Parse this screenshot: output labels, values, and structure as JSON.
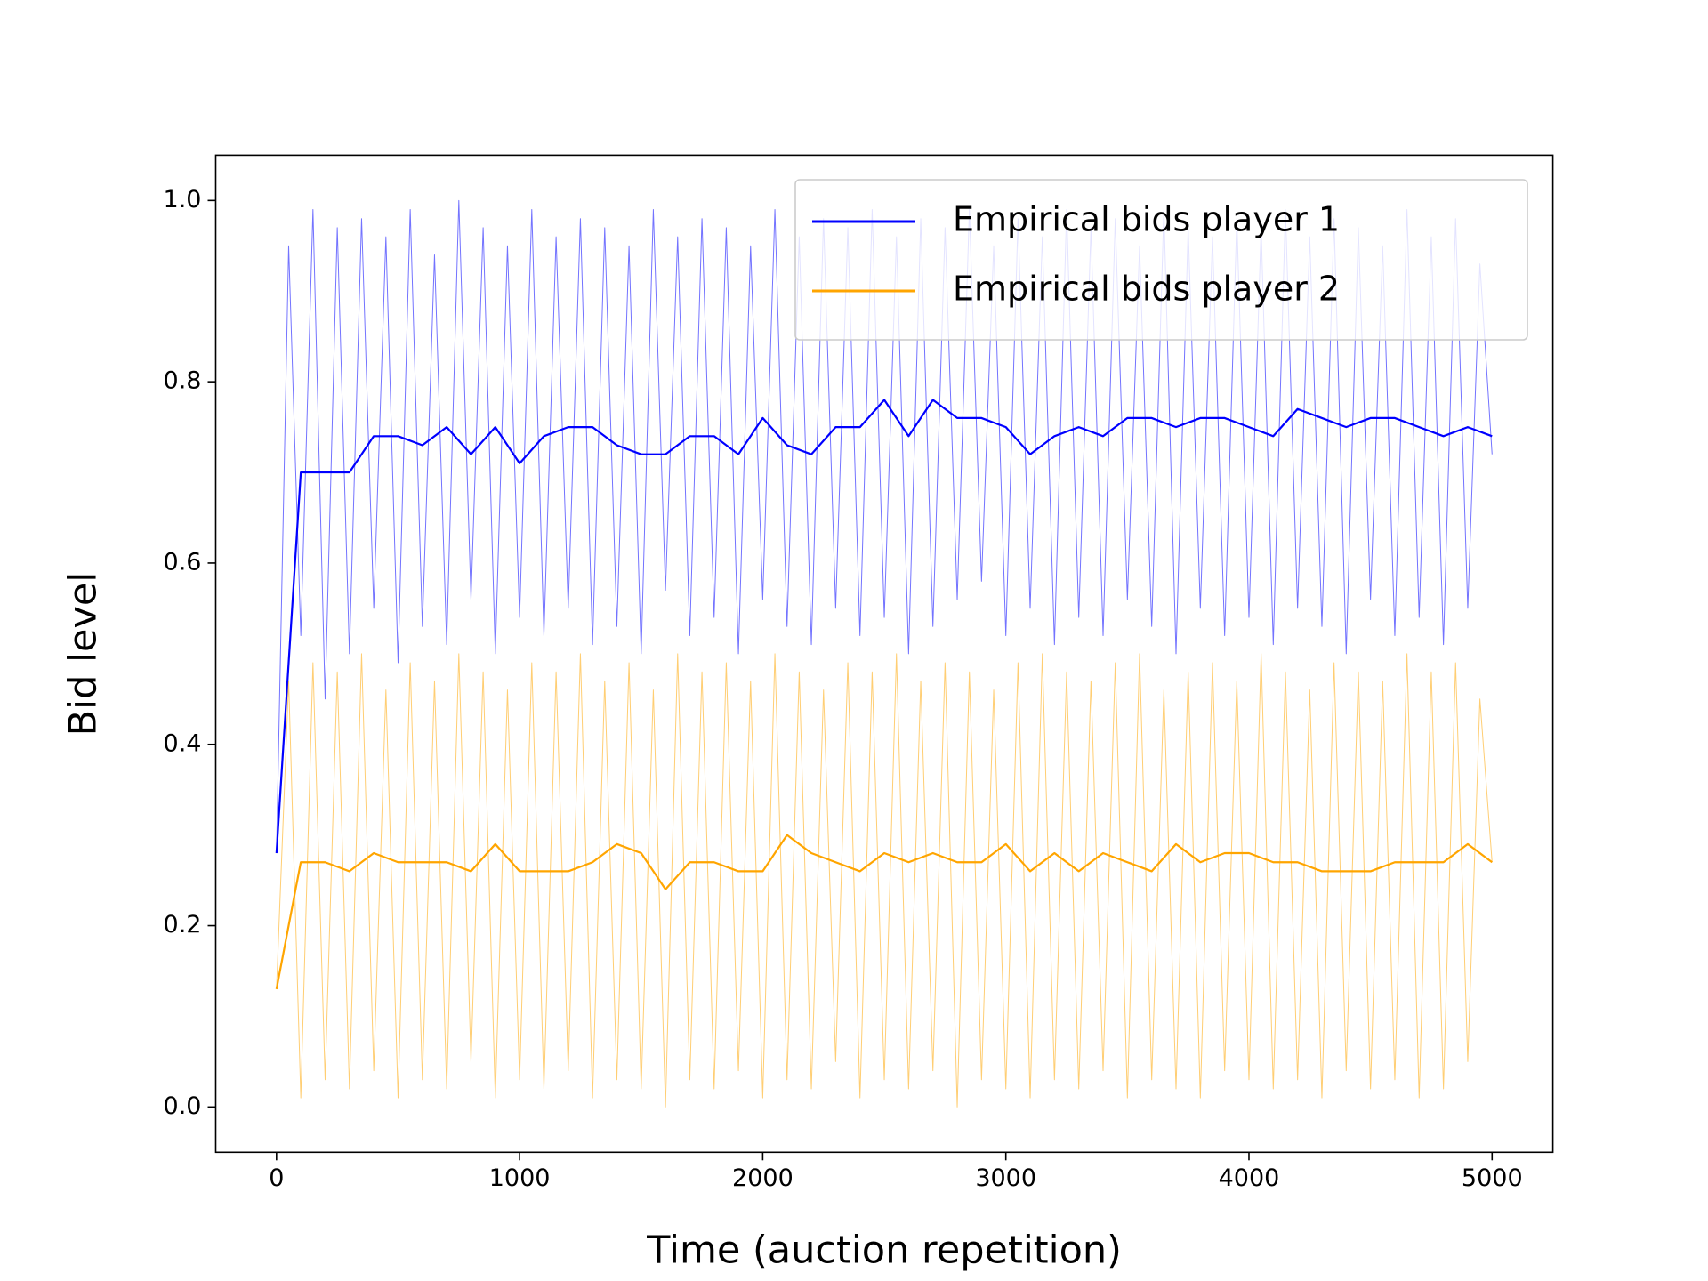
{
  "chart_data": {
    "type": "line",
    "xlabel": "Time (auction repetition)",
    "ylabel": "Bid level",
    "xlim": [
      -250,
      5250
    ],
    "ylim": [
      -0.05,
      1.05
    ],
    "xticks": [
      0,
      1000,
      2000,
      3000,
      4000,
      5000
    ],
    "yticks": [
      {
        "value": 0,
        "label": "0.0"
      },
      {
        "value": 0.2,
        "label": "0.2"
      },
      {
        "value": 0.4,
        "label": "0.4"
      },
      {
        "value": 0.6,
        "label": "0.6"
      },
      {
        "value": 0.8,
        "label": "0.8"
      },
      {
        "value": 1,
        "label": "1.0"
      }
    ],
    "legend": "upper right",
    "grid": false,
    "x": [
      0,
      50,
      100,
      150,
      200,
      250,
      300,
      350,
      400,
      450,
      500,
      550,
      600,
      650,
      700,
      750,
      800,
      850,
      900,
      950,
      1000,
      1050,
      1100,
      1150,
      1200,
      1250,
      1300,
      1350,
      1400,
      1450,
      1500,
      1550,
      1600,
      1650,
      1700,
      1750,
      1800,
      1850,
      1900,
      1950,
      2000,
      2050,
      2100,
      2150,
      2200,
      2250,
      2300,
      2350,
      2400,
      2450,
      2500,
      2550,
      2600,
      2650,
      2700,
      2750,
      2800,
      2850,
      2900,
      2950,
      3000,
      3050,
      3100,
      3150,
      3200,
      3250,
      3300,
      3350,
      3400,
      3450,
      3500,
      3550,
      3600,
      3650,
      3700,
      3750,
      3800,
      3850,
      3900,
      3950,
      4000,
      4050,
      4100,
      4150,
      4200,
      4250,
      4300,
      4350,
      4400,
      4450,
      4500,
      4550,
      4600,
      4650,
      4700,
      4750,
      4800,
      4850,
      4900,
      4950,
      5000
    ],
    "smoothed_x": [
      0,
      100,
      200,
      300,
      400,
      500,
      600,
      700,
      800,
      900,
      1000,
      1100,
      1200,
      1300,
      1400,
      1500,
      1600,
      1700,
      1800,
      1900,
      2000,
      2100,
      2200,
      2300,
      2400,
      2500,
      2600,
      2700,
      2800,
      2900,
      3000,
      3100,
      3200,
      3300,
      3400,
      3500,
      3600,
      3700,
      3800,
      3900,
      4000,
      4100,
      4200,
      4300,
      4400,
      4500,
      4600,
      4700,
      4800,
      4900,
      5000
    ],
    "series": [
      {
        "name": "Empirical bids player 1",
        "color": "#0000ff",
        "values": [
          0.28,
          0.95,
          0.52,
          0.99,
          0.45,
          0.97,
          0.5,
          0.98,
          0.55,
          0.96,
          0.49,
          0.99,
          0.53,
          0.94,
          0.51,
          1.0,
          0.56,
          0.97,
          0.5,
          0.95,
          0.54,
          0.99,
          0.52,
          0.96,
          0.55,
          0.98,
          0.51,
          0.97,
          0.53,
          0.95,
          0.5,
          0.99,
          0.57,
          0.96,
          0.52,
          0.98,
          0.54,
          0.97,
          0.5,
          0.95,
          0.56,
          0.99,
          0.53,
          0.96,
          0.51,
          0.98,
          0.55,
          0.97,
          0.52,
          0.99,
          0.54,
          0.96,
          0.5,
          0.98,
          0.53,
          0.97,
          0.56,
          0.99,
          0.58,
          0.95,
          0.52,
          0.98,
          0.55,
          0.96,
          0.51,
          0.99,
          0.54,
          0.97,
          0.52,
          0.98,
          0.56,
          0.95,
          0.53,
          0.99,
          0.5,
          0.97,
          0.55,
          0.96,
          0.52,
          0.98,
          0.54,
          0.97,
          0.51,
          0.99,
          0.55,
          0.96,
          0.53,
          0.98,
          0.5,
          0.97,
          0.56,
          0.95,
          0.52,
          0.99,
          0.54,
          0.96,
          0.51,
          0.98,
          0.55,
          0.93,
          0.72
        ],
        "smoothed": [
          0.28,
          0.7,
          0.7,
          0.7,
          0.74,
          0.74,
          0.73,
          0.75,
          0.72,
          0.75,
          0.71,
          0.74,
          0.75,
          0.75,
          0.73,
          0.72,
          0.72,
          0.74,
          0.74,
          0.72,
          0.76,
          0.73,
          0.72,
          0.75,
          0.75,
          0.78,
          0.74,
          0.78,
          0.76,
          0.76,
          0.75,
          0.72,
          0.74,
          0.75,
          0.74,
          0.76,
          0.76,
          0.75,
          0.76,
          0.76,
          0.75,
          0.74,
          0.77,
          0.76,
          0.75,
          0.76,
          0.76,
          0.75,
          0.74,
          0.75,
          0.74
        ]
      },
      {
        "name": "Empirical bids player 2",
        "color": "#ffa500",
        "values": [
          0.13,
          0.47,
          0.01,
          0.49,
          0.03,
          0.48,
          0.02,
          0.5,
          0.04,
          0.46,
          0.01,
          0.49,
          0.03,
          0.47,
          0.02,
          0.5,
          0.05,
          0.48,
          0.01,
          0.46,
          0.03,
          0.49,
          0.02,
          0.48,
          0.04,
          0.5,
          0.01,
          0.47,
          0.03,
          0.49,
          0.02,
          0.46,
          0.0,
          0.5,
          0.03,
          0.48,
          0.02,
          0.49,
          0.04,
          0.47,
          0.01,
          0.5,
          0.03,
          0.48,
          0.02,
          0.46,
          0.05,
          0.49,
          0.01,
          0.48,
          0.03,
          0.5,
          0.02,
          0.47,
          0.04,
          0.49,
          0.0,
          0.48,
          0.03,
          0.46,
          0.02,
          0.49,
          0.01,
          0.5,
          0.03,
          0.48,
          0.02,
          0.47,
          0.04,
          0.49,
          0.01,
          0.5,
          0.03,
          0.46,
          0.02,
          0.48,
          0.01,
          0.49,
          0.04,
          0.47,
          0.03,
          0.5,
          0.02,
          0.48,
          0.03,
          0.46,
          0.01,
          0.49,
          0.04,
          0.48,
          0.02,
          0.47,
          0.03,
          0.5,
          0.01,
          0.48,
          0.02,
          0.49,
          0.05,
          0.45,
          0.27
        ],
        "smoothed": [
          0.13,
          0.27,
          0.27,
          0.26,
          0.28,
          0.27,
          0.27,
          0.27,
          0.26,
          0.29,
          0.26,
          0.26,
          0.26,
          0.27,
          0.29,
          0.28,
          0.24,
          0.27,
          0.27,
          0.26,
          0.26,
          0.3,
          0.28,
          0.27,
          0.26,
          0.28,
          0.27,
          0.28,
          0.27,
          0.27,
          0.29,
          0.26,
          0.28,
          0.26,
          0.28,
          0.27,
          0.26,
          0.29,
          0.27,
          0.28,
          0.28,
          0.27,
          0.27,
          0.26,
          0.26,
          0.26,
          0.27,
          0.27,
          0.27,
          0.29,
          0.27
        ]
      }
    ]
  }
}
